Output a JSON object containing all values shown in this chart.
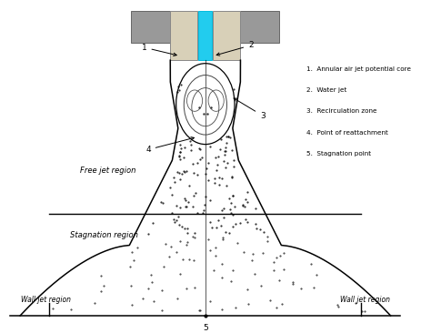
{
  "bg_color": "#ffffff",
  "legend_items": [
    "1.  Annular air jet potential core",
    "2.  Water jet",
    "3.  Recirculation zone",
    "4.  Point of reattachment",
    "5.  Stagnation point"
  ]
}
